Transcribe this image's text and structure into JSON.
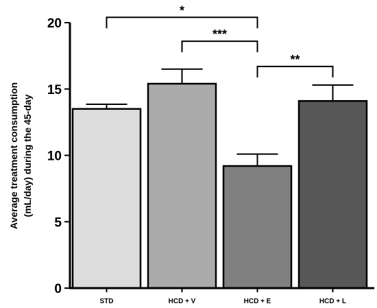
{
  "chart_data": {
    "type": "bar",
    "categories": [
      "STD",
      "HCD + V",
      "HCD + E",
      "HCD + L"
    ],
    "values": [
      13.5,
      15.4,
      9.2,
      14.1
    ],
    "errors": [
      0.35,
      1.1,
      0.9,
      1.2
    ],
    "colors": [
      "#dcdcdc",
      "#ababab",
      "#808080",
      "#575757"
    ],
    "ylabel_lines": [
      "Average treatment consumption",
      "(mL/day) during the 45-day"
    ],
    "ylim": [
      0,
      20
    ],
    "yticks": [
      0,
      5,
      10,
      15,
      20
    ],
    "grid": false,
    "annotations": [
      {
        "from": 0,
        "to": 2,
        "label": "*",
        "level": 20.4
      },
      {
        "from": 1,
        "to": 2,
        "label": "***",
        "level": 18.6
      },
      {
        "from": 2,
        "to": 3,
        "label": "**",
        "level": 16.7
      }
    ]
  }
}
